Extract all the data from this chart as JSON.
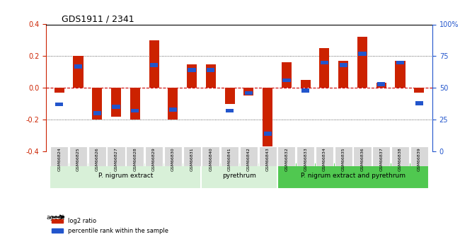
{
  "title": "GDS1911 / 2341",
  "samples": [
    "GSM66824",
    "GSM66825",
    "GSM66826",
    "GSM66827",
    "GSM66828",
    "GSM66829",
    "GSM66830",
    "GSM66831",
    "GSM66840",
    "GSM66841",
    "GSM66842",
    "GSM66843",
    "GSM66832",
    "GSM66833",
    "GSM66834",
    "GSM66835",
    "GSM66836",
    "GSM66837",
    "GSM66838",
    "GSM66839"
  ],
  "log2_ratio": [
    -0.03,
    0.2,
    -0.2,
    -0.18,
    -0.2,
    0.3,
    -0.2,
    0.15,
    0.15,
    -0.1,
    -0.05,
    -0.38,
    0.16,
    0.05,
    0.25,
    0.17,
    0.32,
    0.03,
    0.17,
    -0.03
  ],
  "pct_rank": [
    37,
    67,
    30,
    35,
    32,
    68,
    33,
    64,
    64,
    32,
    46,
    14,
    56,
    48,
    70,
    68,
    77,
    53,
    70,
    38
  ],
  "groups": [
    {
      "label": "P. nigrum extract",
      "start": 0,
      "end": 7,
      "color": "#c8f0c8"
    },
    {
      "label": "pyrethrum",
      "start": 8,
      "end": 11,
      "color": "#c8f0c8"
    },
    {
      "label": "P. nigrum extract and pyrethrum",
      "start": 12,
      "end": 19,
      "color": "#60d060"
    }
  ],
  "bar_color_red": "#cc2200",
  "bar_color_blue": "#2255cc",
  "ylim": [
    -0.4,
    0.4
  ],
  "yticks_left": [
    -0.4,
    -0.2,
    0.0,
    0.2,
    0.4
  ],
  "yticks_right": [
    0,
    25,
    50,
    75,
    100
  ],
  "hline_color": "#cc0000",
  "dotted_color": "#333333",
  "background_plot": "#f5f5f5",
  "legend_red": "log2 ratio",
  "legend_blue": "percentile rank within the sample",
  "group_header": "agent",
  "agent_group_colors": [
    "#d8f0d8",
    "#d8f0d8",
    "#50c850"
  ],
  "bar_width": 0.35
}
